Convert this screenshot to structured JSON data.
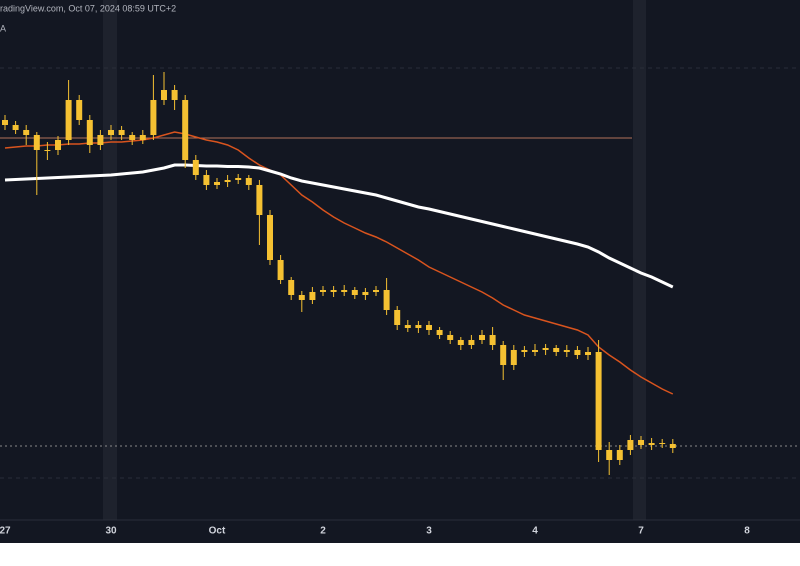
{
  "chart_data": {
    "type": "candlestick",
    "title": "radingView.com, Oct 07, 2024 08:59 UTC+2",
    "subtitle": "A",
    "color": "#f5c132",
    "background": "#131722",
    "ylim": [
      0,
      520
    ],
    "categories": [
      "27",
      null,
      null,
      null,
      null,
      null,
      null,
      null,
      null,
      null,
      "30",
      null,
      null,
      null,
      null,
      null,
      null,
      null,
      null,
      null,
      "Oct",
      null,
      null,
      null,
      null,
      null,
      null,
      null,
      null,
      null,
      "2",
      null,
      null,
      null,
      null,
      null,
      null,
      null,
      null,
      null,
      "3",
      null,
      null,
      null,
      null,
      null,
      null,
      null,
      null,
      null,
      "4",
      null,
      null,
      null,
      null,
      null,
      null,
      null,
      null,
      null,
      "7",
      null,
      null,
      null,
      null,
      null,
      null,
      null,
      null,
      null,
      "8"
    ],
    "open": [
      400,
      395,
      390,
      385,
      370,
      370,
      380,
      420,
      400,
      375,
      385,
      390,
      385,
      380,
      385,
      420,
      430,
      420,
      360,
      345,
      335,
      338,
      340,
      342,
      335,
      305,
      260,
      240,
      225,
      220,
      228,
      230,
      228,
      230,
      225,
      228,
      230,
      210,
      195,
      192,
      195,
      190,
      185,
      180,
      175,
      180,
      185,
      175,
      155,
      170,
      168,
      170,
      172,
      168,
      170,
      165,
      168,
      70,
      60,
      70,
      80,
      75,
      77,
      76,
      null,
      null,
      null,
      null,
      null,
      null,
      null
    ],
    "high": [
      405,
      399,
      395,
      388,
      378,
      384,
      440,
      425,
      405,
      390,
      395,
      394,
      388,
      390,
      445,
      448,
      435,
      425,
      365,
      350,
      342,
      345,
      346,
      345,
      340,
      310,
      265,
      243,
      229,
      233,
      234,
      234,
      235,
      233,
      232,
      234,
      242,
      214,
      200,
      199,
      199,
      193,
      189,
      183,
      185,
      190,
      193,
      179,
      175,
      174,
      176,
      176,
      175,
      175,
      174,
      173,
      180,
      78,
      75,
      85,
      84,
      82,
      81,
      81,
      null,
      null,
      null,
      null,
      null,
      null,
      null
    ],
    "low": [
      390,
      386,
      375,
      325,
      360,
      365,
      375,
      395,
      367,
      370,
      380,
      380,
      375,
      376,
      380,
      415,
      410,
      352,
      340,
      330,
      331,
      333,
      336,
      330,
      275,
      255,
      236,
      220,
      208,
      216,
      224,
      223,
      224,
      221,
      220,
      224,
      205,
      190,
      188,
      187,
      185,
      181,
      176,
      170,
      171,
      176,
      170,
      140,
      150,
      163,
      164,
      165,
      164,
      163,
      161,
      160,
      58,
      45,
      55,
      65,
      71,
      70,
      72,
      67,
      null,
      null,
      null,
      null,
      null,
      null,
      null
    ],
    "close": [
      395,
      390,
      385,
      370,
      370,
      380,
      420,
      400,
      375,
      385,
      390,
      385,
      380,
      385,
      420,
      430,
      420,
      360,
      345,
      335,
      338,
      340,
      342,
      335,
      305,
      260,
      240,
      225,
      220,
      228,
      230,
      228,
      230,
      225,
      228,
      230,
      210,
      195,
      192,
      195,
      190,
      185,
      180,
      175,
      180,
      185,
      175,
      155,
      170,
      168,
      170,
      172,
      168,
      170,
      165,
      168,
      70,
      60,
      70,
      80,
      75,
      77,
      76,
      72,
      null,
      null,
      null,
      null,
      null,
      null,
      null
    ],
    "series": [
      {
        "color": "#d9541e",
        "values": [
          372,
          373,
          374,
          374,
          375,
          375,
          376,
          376,
          377,
          377,
          378,
          378,
          379,
          380,
          382,
          385,
          388,
          386,
          383,
          380,
          378,
          375,
          370,
          362,
          355,
          350,
          345,
          335,
          325,
          318,
          310,
          303,
          297,
          292,
          287,
          283,
          278,
          272,
          266,
          260,
          253,
          248,
          243,
          238,
          233,
          228,
          222,
          215,
          210,
          205,
          202,
          199,
          196,
          193,
          190,
          185,
          173,
          165,
          158,
          150,
          143,
          137,
          131,
          126,
          null,
          null,
          null,
          null,
          null,
          null,
          null
        ]
      },
      {
        "color": "#ffffff",
        "values": [
          340,
          340.5,
          341,
          341.5,
          342,
          342.5,
          343,
          343.5,
          344,
          344.5,
          345,
          346,
          347,
          348,
          350,
          352,
          355,
          355,
          354.5,
          354,
          354,
          353.5,
          353.5,
          353,
          352,
          349,
          346,
          342,
          339,
          337,
          335,
          333,
          331,
          329,
          327,
          325,
          322,
          319,
          316,
          313,
          311,
          308.5,
          306,
          303.5,
          301,
          298.5,
          296,
          293.5,
          291,
          288.5,
          286,
          283.5,
          281,
          278.5,
          276,
          273,
          268,
          262,
          257,
          252,
          247,
          243,
          238,
          233,
          null,
          null,
          null,
          null,
          null,
          null,
          null
        ]
      }
    ],
    "hlines": [
      {
        "value": 382,
        "color": "#b0705a",
        "style": "solid"
      },
      {
        "value": 74,
        "color": "#8a8a8a",
        "style": "dotted"
      },
      {
        "value": 452,
        "color": "#2a2e39",
        "style": "dashed"
      },
      {
        "value": 42,
        "color": "#2a2e39",
        "style": "dashed"
      }
    ]
  }
}
